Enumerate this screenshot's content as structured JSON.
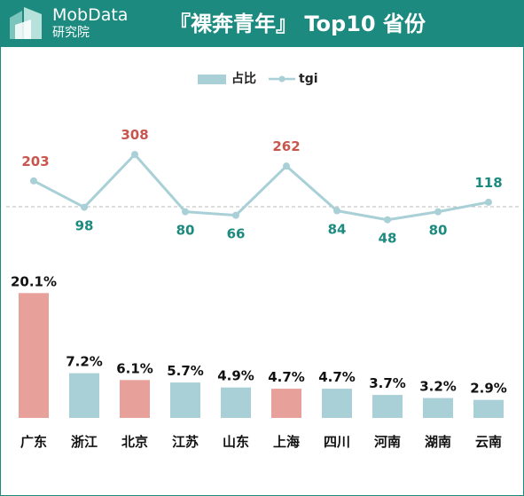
{
  "header": {
    "brand": "MobData",
    "brand_sub": "研究院",
    "title": "『裸奔青年』  Top10 省份"
  },
  "legend": {
    "bar_label": "占比",
    "line_label": "tgi"
  },
  "colors": {
    "header_bg": "#1d8a80",
    "bar_default": "#a8d0d6",
    "bar_highlight": "#e8a09a",
    "line": "#a8d0d6",
    "label_high": "#c8564e",
    "label_low": "#1d8a80",
    "bar_label": "#111111",
    "reference_line": "#bbbbbb"
  },
  "chart_data": {
    "type": "bar",
    "categories": [
      "广东",
      "浙江",
      "北京",
      "江苏",
      "山东",
      "上海",
      "四川",
      "河南",
      "湖南",
      "云南"
    ],
    "series": [
      {
        "name": "占比",
        "type": "bar",
        "values": [
          20.1,
          7.2,
          6.1,
          5.7,
          4.9,
          4.7,
          4.7,
          3.7,
          3.2,
          2.9
        ],
        "labels": [
          "20.1%",
          "7.2%",
          "6.1%",
          "5.7%",
          "4.9%",
          "4.7%",
          "4.7%",
          "3.7%",
          "3.2%",
          "2.9%"
        ],
        "highlight": [
          true,
          false,
          true,
          false,
          false,
          true,
          false,
          false,
          false,
          false
        ]
      },
      {
        "name": "tgi",
        "type": "line",
        "values": [
          203,
          98,
          308,
          80,
          66,
          262,
          84,
          48,
          80,
          118
        ],
        "labels": [
          "203",
          "98",
          "308",
          "80",
          "66",
          "262",
          "84",
          "48",
          "80",
          "118"
        ]
      }
    ],
    "reference_value": 100,
    "legend_position": "top",
    "grid": false
  }
}
